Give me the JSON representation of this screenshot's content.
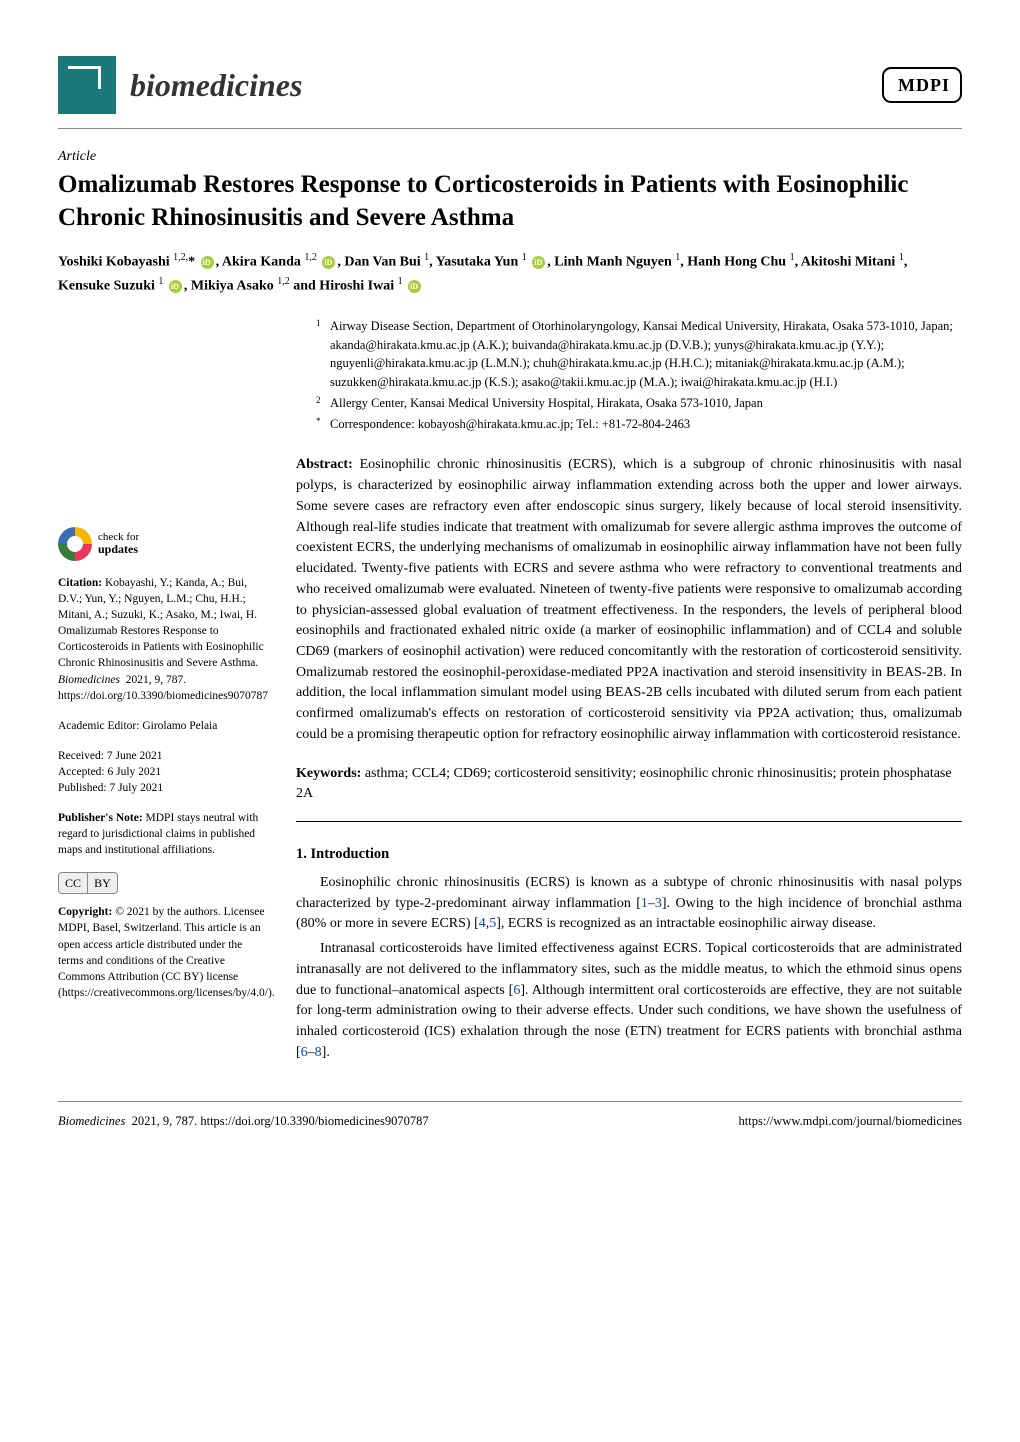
{
  "journal": {
    "name": "biomedicines",
    "publisher_logo": "MDPI"
  },
  "article": {
    "type": "Article",
    "title": "Omalizumab Restores Response to Corticosteroids in Patients with Eosinophilic Chronic Rhinosinusitis and Severe Asthma"
  },
  "authors_html": "Yoshiki Kobayashi <sup>1,2,</sup>* <span class='orcid'></span>, Akira Kanda <sup>1,2</sup> <span class='orcid'></span>, Dan Van Bui <sup>1</sup>, Yasutaka Yun <sup>1</sup> <span class='orcid'></span>, Linh Manh Nguyen <sup>1</sup>, Hanh Hong Chu <sup>1</sup>, Akitoshi Mitani <sup>1</sup>, Kensuke Suzuki <sup>1</sup> <span class='orcid'></span>, Mikiya Asako <sup>1,2</sup> and Hiroshi Iwai <sup>1</sup> <span class='orcid'></span>",
  "affiliations": [
    {
      "num": "1",
      "text": "Airway Disease Section, Department of Otorhinolaryngology, Kansai Medical University, Hirakata, Osaka 573-1010, Japan; akanda@hirakata.kmu.ac.jp (A.K.); buivanda@hirakata.kmu.ac.jp (D.V.B.); yunys@hirakata.kmu.ac.jp (Y.Y.); nguyenli@hirakata.kmu.ac.jp (L.M.N.); chuh@hirakata.kmu.ac.jp (H.H.C.); mitaniak@hirakata.kmu.ac.jp (A.M.); suzukken@hirakata.kmu.ac.jp (K.S.); asako@takii.kmu.ac.jp (M.A.); iwai@hirakata.kmu.ac.jp (H.I.)"
    },
    {
      "num": "2",
      "text": "Allergy Center, Kansai Medical University Hospital, Hirakata, Osaka 573-1010, Japan"
    },
    {
      "num": "*",
      "text": "Correspondence: kobayosh@hirakata.kmu.ac.jp; Tel.: +81-72-804-2463"
    }
  ],
  "abstract": {
    "label": "Abstract:",
    "text": "Eosinophilic chronic rhinosinusitis (ECRS), which is a subgroup of chronic rhinosinusitis with nasal polyps, is characterized by eosinophilic airway inflammation extending across both the upper and lower airways. Some severe cases are refractory even after endoscopic sinus surgery, likely because of local steroid insensitivity. Although real-life studies indicate that treatment with omalizumab for severe allergic asthma improves the outcome of coexistent ECRS, the underlying mechanisms of omalizumab in eosinophilic airway inflammation have not been fully elucidated. Twenty-five patients with ECRS and severe asthma who were refractory to conventional treatments and who received omalizumab were evaluated. Nineteen of twenty-five patients were responsive to omalizumab according to physician-assessed global evaluation of treatment effectiveness. In the responders, the levels of peripheral blood eosinophils and fractionated exhaled nitric oxide (a marker of eosinophilic inflammation) and of CCL4 and soluble CD69 (markers of eosinophil activation) were reduced concomitantly with the restoration of corticosteroid sensitivity. Omalizumab restored the eosinophil-peroxidase-mediated PP2A inactivation and steroid insensitivity in BEAS-2B. In addition, the local inflammation simulant model using BEAS-2B cells incubated with diluted serum from each patient confirmed omalizumab's effects on restoration of corticosteroid sensitivity via PP2A activation; thus, omalizumab could be a promising therapeutic option for refractory eosinophilic airway inflammation with corticosteroid resistance."
  },
  "keywords": {
    "label": "Keywords:",
    "text": "asthma; CCL4; CD69; corticosteroid sensitivity; eosinophilic chronic rhinosinusitis; protein phosphatase 2A"
  },
  "sidebar": {
    "check_updates_line1": "check for",
    "check_updates_line2": "updates",
    "citation_label": "Citation:",
    "citation_text": "Kobayashi, Y.; Kanda, A.; Bui, D.V.; Yun, Y.; Nguyen, L.M.; Chu, H.H.; Mitani, A.; Suzuki, K.; Asako, M.; Iwai, H. Omalizumab Restores Response to Corticosteroids in Patients with Eosinophilic Chronic Rhinosinusitis and Severe Asthma.",
    "citation_journal": "Biomedicines",
    "citation_ref": "2021, 9, 787. https://doi.org/10.3390/biomedicines9070787",
    "editor_label": "Academic Editor:",
    "editor_name": "Girolamo Pelaia",
    "received_label": "Received:",
    "received_date": "7 June 2021",
    "accepted_label": "Accepted:",
    "accepted_date": "6 July 2021",
    "published_label": "Published:",
    "published_date": "7 July 2021",
    "pubnote_label": "Publisher's Note:",
    "pubnote_text": "MDPI stays neutral with regard to jurisdictional claims in published maps and institutional affiliations.",
    "cc_text1": "CC",
    "cc_text2": "BY",
    "copyright_label": "Copyright:",
    "copyright_text": "© 2021 by the authors. Licensee MDPI, Basel, Switzerland. This article is an open access article distributed under the terms and conditions of the Creative Commons Attribution (CC BY) license (https://creativecommons.org/licenses/by/4.0/)."
  },
  "intro": {
    "heading": "1. Introduction",
    "p1_a": "Eosinophilic chronic rhinosinusitis (ECRS) is known as a subtype of chronic rhinosinusitis with nasal polyps characterized by type-2-predominant airway inflammation [",
    "p1_ref1": "1",
    "p1_dash1": "–",
    "p1_ref2": "3",
    "p1_b": "]. Owing to the high incidence of bronchial asthma (80% or more in severe ECRS) [",
    "p1_ref3": "4",
    "p1_comma": ",",
    "p1_ref4": "5",
    "p1_c": "], ECRS is recognized as an intractable eosinophilic airway disease.",
    "p2_a": "Intranasal corticosteroids have limited effectiveness against ECRS. Topical corticosteroids that are administrated intranasally are not delivered to the inflammatory sites, such as the middle meatus, to which the ethmoid sinus opens due to functional–anatomical aspects [",
    "p2_ref1": "6",
    "p2_b": "]. Although intermittent oral corticosteroids are effective, they are not suitable for long-term administration owing to their adverse effects. Under such conditions, we have shown the usefulness of inhaled corticosteroid (ICS) exhalation through the nose (ETN) treatment for ECRS patients with bronchial asthma [",
    "p2_ref2": "6",
    "p2_dash": "–",
    "p2_ref3": "8",
    "p2_c": "]."
  },
  "footer": {
    "left_journal": "Biomedicines",
    "left_ref": "2021, 9, 787. https://doi.org/10.3390/biomedicines9070787",
    "right": "https://www.mdpi.com/journal/biomedicines"
  },
  "colors": {
    "journal_icon_bg": "#1a7a7a",
    "orcid_bg": "#a6ce39",
    "ref_link": "#0645ad",
    "rule": "#888888"
  }
}
